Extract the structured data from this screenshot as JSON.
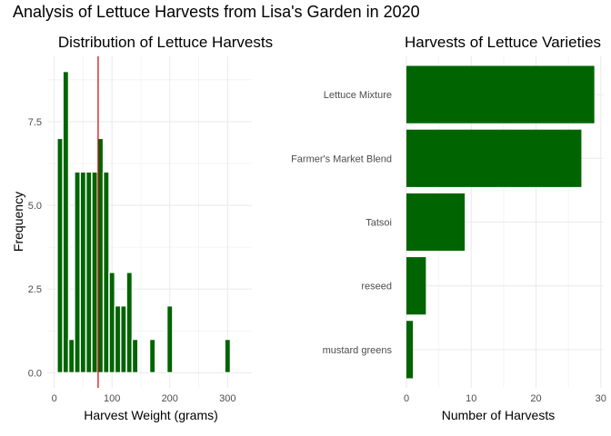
{
  "title": "Analysis of Lettuce Harvests from Lisa's Garden in 2020",
  "colors": {
    "bar": "#006400",
    "refline": "#cc0000",
    "grid_major": "#ebebeb",
    "grid_minor": "#f4f4f4"
  },
  "chart_data": [
    {
      "type": "bar",
      "subtype": "histogram",
      "title": "Distribution of Lettuce Harvests",
      "xlabel": "Harvest Weight (grams)",
      "ylabel": "Frequency",
      "xlim": [
        -12,
        342
      ],
      "ylim": [
        -0.45,
        9.45
      ],
      "xticks": [
        0,
        100,
        200,
        300
      ],
      "yticks": [
        0.0,
        2.5,
        5.0,
        7.5
      ],
      "ytick_labels": [
        "0.0",
        "2.5",
        "5.0",
        "7.5"
      ],
      "reference_line_x": 76,
      "bins": [
        {
          "x": 10,
          "count": 7
        },
        {
          "x": 20,
          "count": 9
        },
        {
          "x": 30,
          "count": 1
        },
        {
          "x": 40,
          "count": 6
        },
        {
          "x": 50,
          "count": 6
        },
        {
          "x": 60,
          "count": 6
        },
        {
          "x": 70,
          "count": 6
        },
        {
          "x": 80,
          "count": 7
        },
        {
          "x": 90,
          "count": 6
        },
        {
          "x": 100,
          "count": 3
        },
        {
          "x": 110,
          "count": 2
        },
        {
          "x": 120,
          "count": 2
        },
        {
          "x": 130,
          "count": 3
        },
        {
          "x": 140,
          "count": 1
        },
        {
          "x": 170,
          "count": 1
        },
        {
          "x": 200,
          "count": 2
        },
        {
          "x": 300,
          "count": 1
        }
      ],
      "grid": true
    },
    {
      "type": "bar",
      "orientation": "horizontal",
      "title": "Harvests of Lettuce Varieties",
      "xlabel": "Number of Harvests",
      "ylabel": "",
      "xlim": [
        0,
        30.45
      ],
      "xticks": [
        0,
        10,
        20,
        30
      ],
      "categories": [
        "Lettuce Mixture",
        "Farmer's Market Blend",
        "Tatsoi",
        "reseed",
        "mustard greens"
      ],
      "values": [
        29,
        27,
        9,
        3,
        1
      ],
      "grid": true
    }
  ]
}
